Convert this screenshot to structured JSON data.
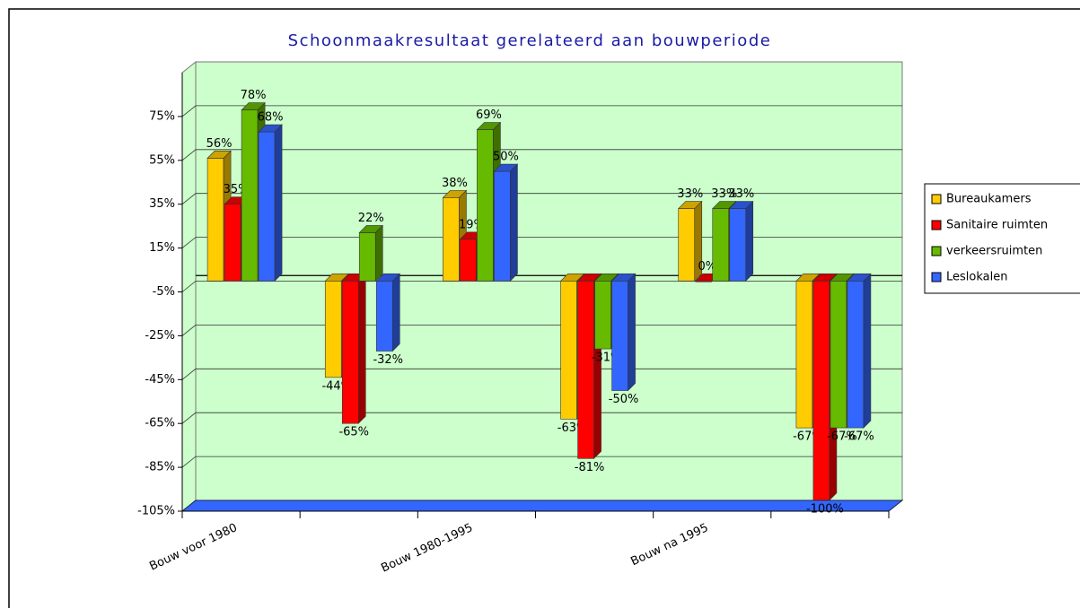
{
  "chart_data": {
    "type": "bar3d",
    "title": "Schoonmaakresultaat gerelateerd aan bouwperiode",
    "categories": [
      "Bouw voor 1980",
      null,
      "Bouw 1980-1995",
      null,
      "Bouw na 1995",
      null
    ],
    "series": [
      {
        "name": "Bureaukamers",
        "color": "#ffcc00",
        "values": [
          56,
          -44,
          38,
          -63,
          33,
          -67
        ],
        "value_labels": [
          "56%",
          "-44%",
          "38%",
          "-63%",
          "33%",
          "-67%"
        ]
      },
      {
        "name": "Sanitaire ruimten",
        "color": "#ff0000",
        "values": [
          35,
          -65,
          19,
          -81,
          0,
          -100
        ],
        "value_labels": [
          "35%",
          "-65%",
          "19%",
          "-81%",
          "0%",
          "-100%"
        ]
      },
      {
        "name": "verkeersruimten",
        "color": "#66bb00",
        "values": [
          78,
          22,
          69,
          -31,
          33,
          -67
        ],
        "value_labels": [
          "78%",
          "22%",
          "69%",
          "-31%",
          "33%",
          "-67%"
        ]
      },
      {
        "name": "Leslokalen",
        "color": "#3366ff",
        "values": [
          68,
          -32,
          50,
          -50,
          33,
          -67
        ],
        "value_labels": [
          "68%",
          "-32%",
          "50%",
          "-50%",
          "33%",
          "-67%"
        ]
      }
    ],
    "ylim": [
      -105,
      95
    ],
    "yticks": [
      {
        "value": -105,
        "label": "-105%"
      },
      {
        "value": -85,
        "label": "-85%"
      },
      {
        "value": -65,
        "label": "-65%"
      },
      {
        "value": -45,
        "label": "-45%"
      },
      {
        "value": -25,
        "label": "-25%"
      },
      {
        "value": -5,
        "label": "-5%"
      },
      {
        "value": 15,
        "label": "15%"
      },
      {
        "value": 35,
        "label": "35%"
      },
      {
        "value": 55,
        "label": "55%"
      },
      {
        "value": 75,
        "label": "75%"
      }
    ],
    "grid": true
  }
}
